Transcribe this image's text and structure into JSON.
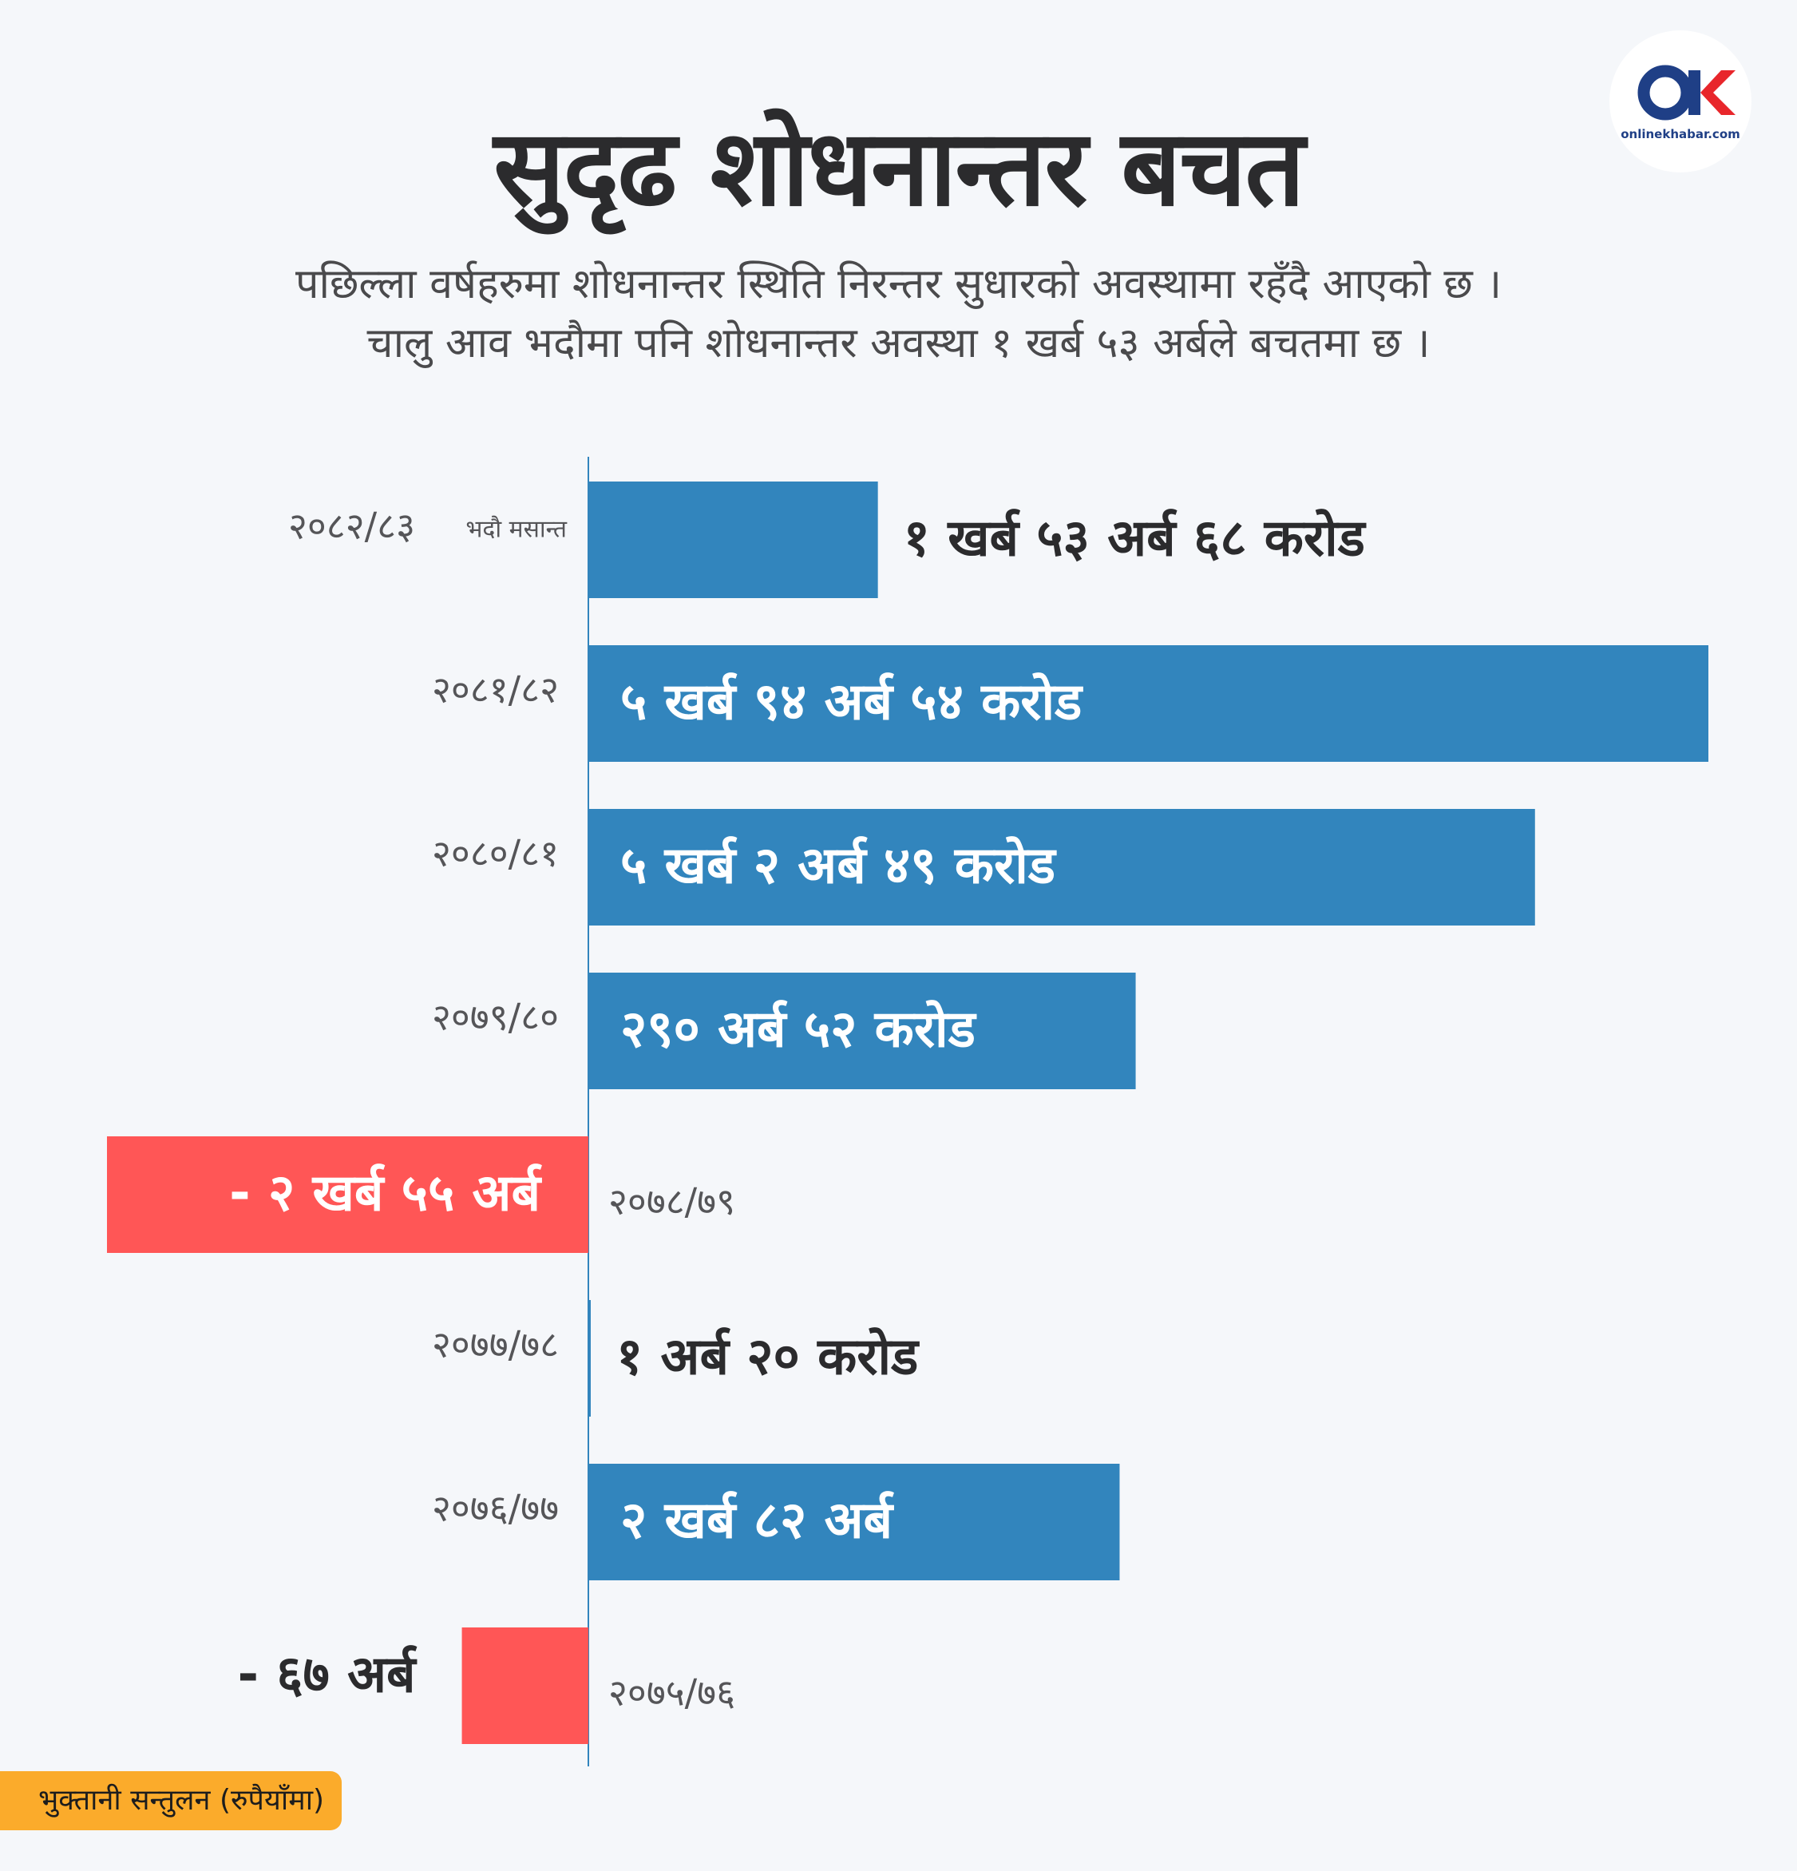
{
  "header": {
    "title": "सुदृढ शोधनान्तर बचत",
    "subtitle_line1": "पछिल्ला वर्षहरुमा शोधनान्तर स्थिति निरन्तर सुधारको अवस्थामा रहँदै आएको छ ।",
    "subtitle_line2": "चालु आव भदौमा पनि शोधनान्तर अवस्था १ खर्ब ५३ अर्बले बचतमा छ ।"
  },
  "logo": {
    "text": "onlinekhabar.com"
  },
  "legend": {
    "label": "भुक्तानी सन्तुलन (रुपैयाँमा)"
  },
  "colors": {
    "positive": "#3285bd",
    "negative": "#ff5656",
    "axis": "#3285bd",
    "label_dark": "#2b2b2d",
    "label_light": "#ffffff",
    "category": "#555558",
    "legend_bg": "#fbab2b"
  },
  "chart_data": {
    "type": "bar",
    "orientation": "horizontal",
    "series_unit": "अर्ब",
    "categories": [
      "२०८२/८३",
      "२०८१/८२",
      "२०८०/८१",
      "२०७९/८०",
      "२०७८/७९",
      "२०७७/७८",
      "२०७६/७७",
      "२०७५/७६"
    ],
    "category_notes": [
      "भदौ मसान्त",
      "",
      "",
      "",
      "",
      "",
      "",
      ""
    ],
    "values": [
      153.68,
      594.54,
      502.49,
      290.52,
      -255,
      1.2,
      282,
      -67
    ],
    "value_labels": [
      "१ खर्ब ५३ अर्ब ६८ करोड",
      "५ खर्ब ९४ अर्ब ५४ करोड",
      "५ खर्ब २ अर्ब ४९ करोड",
      "२९० अर्ब ५२ करोड",
      "- २ खर्ब ५५ अर्ब",
      "१ अर्ब २० करोड",
      "२ खर्ब ८२ अर्ब",
      "- ६७ अर्ब"
    ],
    "xlim": [
      -255,
      594.54
    ],
    "grid": false,
    "legend": "bottom-left"
  }
}
